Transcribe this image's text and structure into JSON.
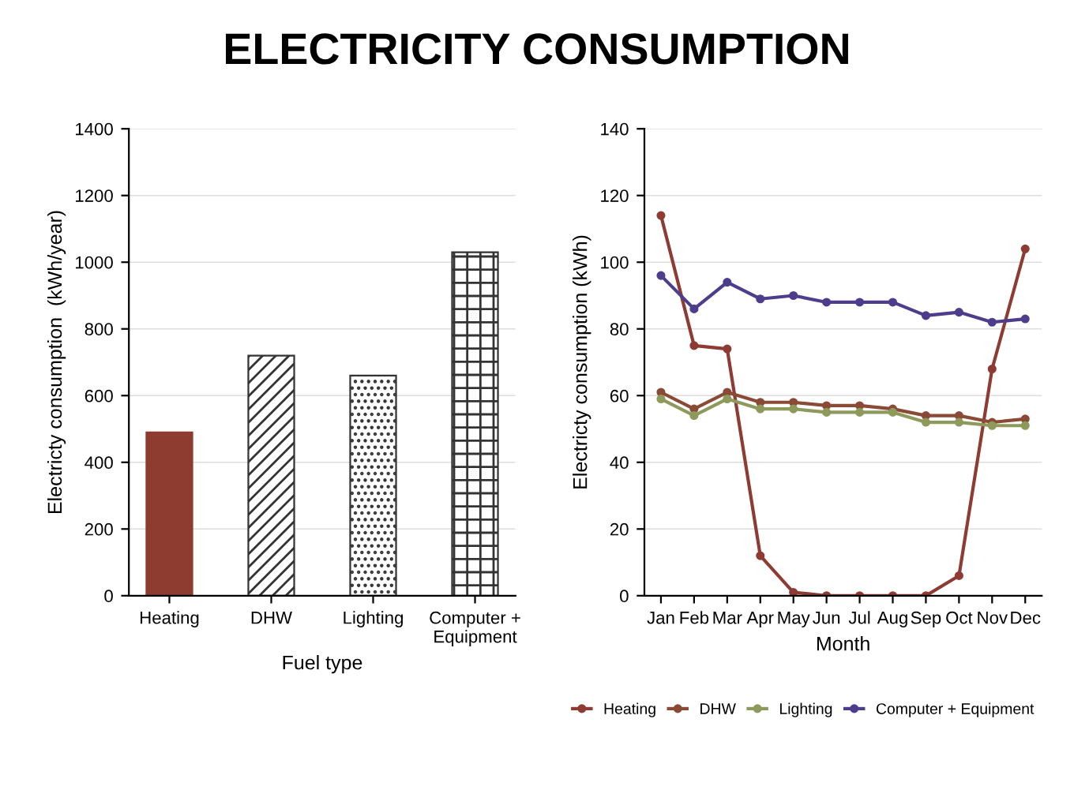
{
  "chart_data": [
    {
      "type": "bar",
      "title": "ELECTRICITY CONSUMPTION",
      "xlabel": "Fuel type",
      "ylabel": "Electricty consumption  (kWh/year)",
      "categories": [
        "Heating",
        "DHW",
        "Lighting",
        "Computer +\nEquipment"
      ],
      "values": [
        490,
        720,
        660,
        1030
      ],
      "colors": [
        "#8e3b30",
        "#333333",
        "#333333",
        "#333333"
      ],
      "ylim": [
        0,
        1400
      ],
      "yticks": [
        0,
        200,
        400,
        600,
        800,
        1000,
        1200,
        1400
      ],
      "grid": "y"
    },
    {
      "type": "line",
      "xlabel": "Month",
      "ylabel": "Electricty consumption (kWh)",
      "categories": [
        "Jan",
        "Feb",
        "Mar",
        "Apr",
        "May",
        "Jun",
        "Jul",
        "Aug",
        "Sep",
        "Oct",
        "Nov",
        "Dec"
      ],
      "series": [
        {
          "name": "Heating",
          "color": "#8e3b34",
          "values": [
            114,
            75,
            74,
            12,
            1,
            0,
            0,
            0,
            0,
            6,
            68,
            104
          ]
        },
        {
          "name": "DHW",
          "color": "#8a4a36",
          "values": [
            61,
            56,
            61,
            58,
            58,
            57,
            57,
            56,
            54,
            54,
            52,
            53
          ]
        },
        {
          "name": "Lighting",
          "color": "#8d9a5c",
          "values": [
            59,
            54,
            59,
            56,
            56,
            55,
            55,
            55,
            52,
            52,
            51,
            51
          ]
        },
        {
          "name": "Computer + Equipment",
          "color": "#4d3d8c",
          "values": [
            96,
            86,
            94,
            89,
            90,
            88,
            88,
            88,
            84,
            85,
            82,
            83
          ]
        }
      ],
      "ylim": [
        0,
        140
      ],
      "yticks": [
        0,
        20,
        40,
        60,
        80,
        100,
        120,
        140
      ],
      "grid": "y",
      "legend": "bottom",
      "marker": "circle",
      "line_style": "solid"
    }
  ]
}
